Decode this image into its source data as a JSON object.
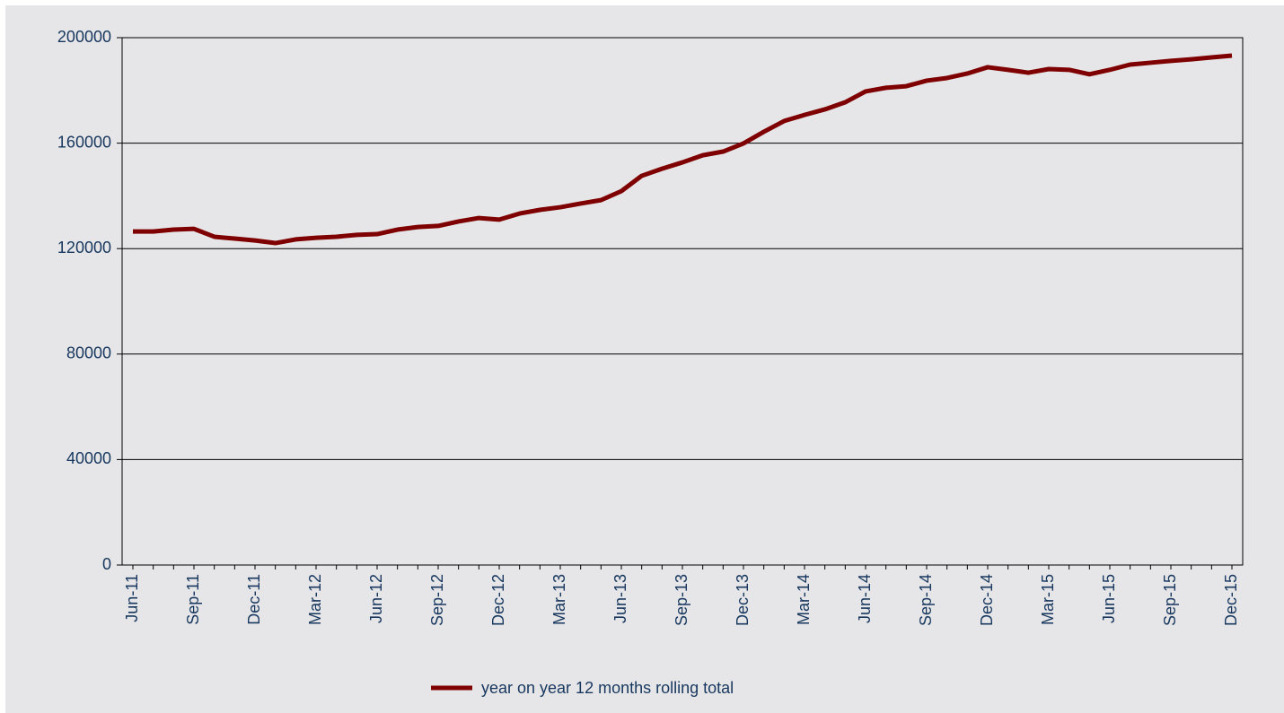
{
  "chart_data": {
    "type": "line",
    "categories": [
      "Jun-11",
      null,
      null,
      "Sep-11",
      null,
      null,
      "Dec-11",
      null,
      null,
      "Mar-12",
      null,
      null,
      "Jun-12",
      null,
      null,
      "Sep-12",
      null,
      null,
      "Dec-12",
      null,
      null,
      "Mar-13",
      null,
      null,
      "Jun-13",
      null,
      null,
      "Sep-13",
      null,
      null,
      "Dec-13",
      null,
      null,
      "Mar-14",
      null,
      null,
      "Jun-14",
      null,
      null,
      "Sep-14",
      null,
      null,
      "Dec-14",
      null,
      null,
      "Mar-15",
      null,
      null,
      "Jun-15",
      null,
      null,
      "Sep-15",
      null,
      null,
      "Dec-15"
    ],
    "series": [
      {
        "name": "year on year 12 months rolling total",
        "color": "#7f0000",
        "values": [
          126500,
          126500,
          127200,
          127500,
          124500,
          123800,
          123100,
          122100,
          123500,
          124100,
          124500,
          125200,
          125500,
          127200,
          128200,
          128600,
          130300,
          131600,
          131000,
          133300,
          134700,
          135700,
          137100,
          138400,
          141800,
          147600,
          150300,
          152700,
          155400,
          156800,
          159900,
          164300,
          168400,
          170700,
          172800,
          175500,
          179600,
          181000,
          181600,
          183700,
          184700,
          186400,
          188800,
          187800,
          186700,
          188100,
          187800,
          186100,
          187800,
          189800,
          190500,
          191200,
          191800,
          192500,
          193200
        ]
      }
    ],
    "ylim": [
      0,
      200000
    ],
    "yticks": [
      0,
      40000,
      80000,
      120000,
      160000,
      200000
    ],
    "grid": true,
    "legend": "bottom"
  }
}
